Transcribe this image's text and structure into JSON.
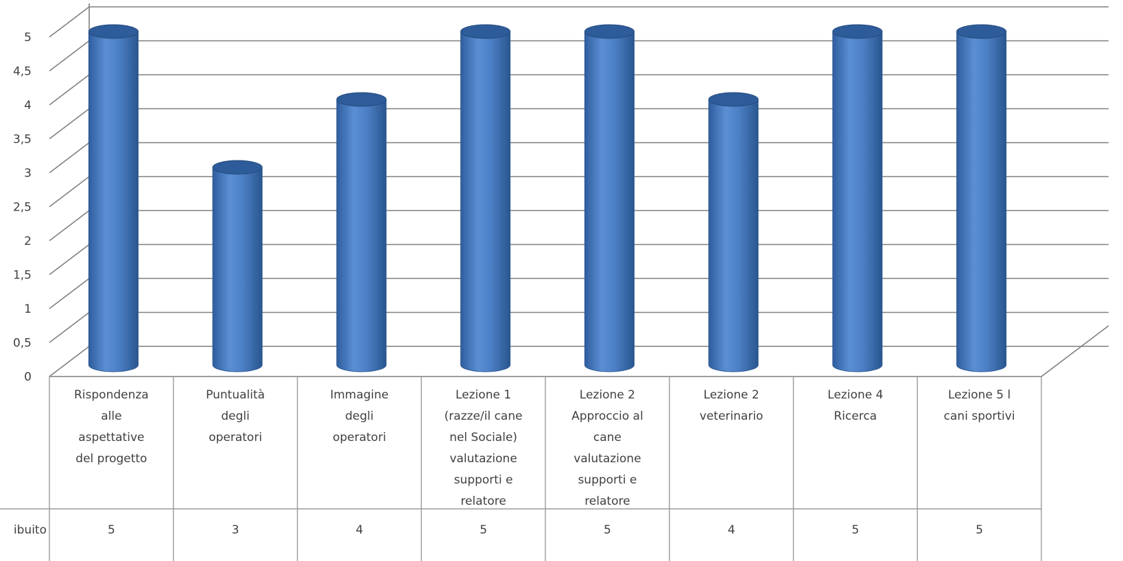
{
  "chart_data": {
    "type": "bar",
    "categories": [
      [
        "Rispondenza",
        "alle",
        "aspettative",
        "del progetto"
      ],
      [
        "Puntualità",
        "degli",
        "operatori"
      ],
      [
        "Immagine",
        "degli",
        "operatori"
      ],
      [
        "Lezione 1",
        "(razze/il cane",
        "nel Sociale)",
        "valutazione",
        "supporti e",
        "relatore"
      ],
      [
        "Lezione 2",
        "Approccio al",
        "cane",
        "valutazione",
        "supporti e",
        "relatore"
      ],
      [
        "Lezione 2",
        "veterinario"
      ],
      [
        "Lezione 4",
        "Ricerca"
      ],
      [
        "Lezione 5  l",
        "cani sportivi"
      ]
    ],
    "series": [
      {
        "name": "ibuito",
        "values": [
          5,
          3,
          4,
          5,
          5,
          4,
          5,
          5
        ]
      }
    ],
    "ylim": [
      0,
      5
    ],
    "yticks": [
      "0",
      "0,5",
      "1",
      "1,5",
      "2",
      "2,5",
      "3",
      "3,5",
      "4",
      "4,5",
      "5"
    ],
    "grid": true,
    "data_table": true,
    "bar_shape": "3d-cylinder",
    "colors": {
      "bar_fill": "#4A7EC2",
      "bar_top": "#2E5C9A",
      "bar_edge": "#2B5690",
      "grid": "#7f7f7f",
      "text": "#404040"
    }
  }
}
